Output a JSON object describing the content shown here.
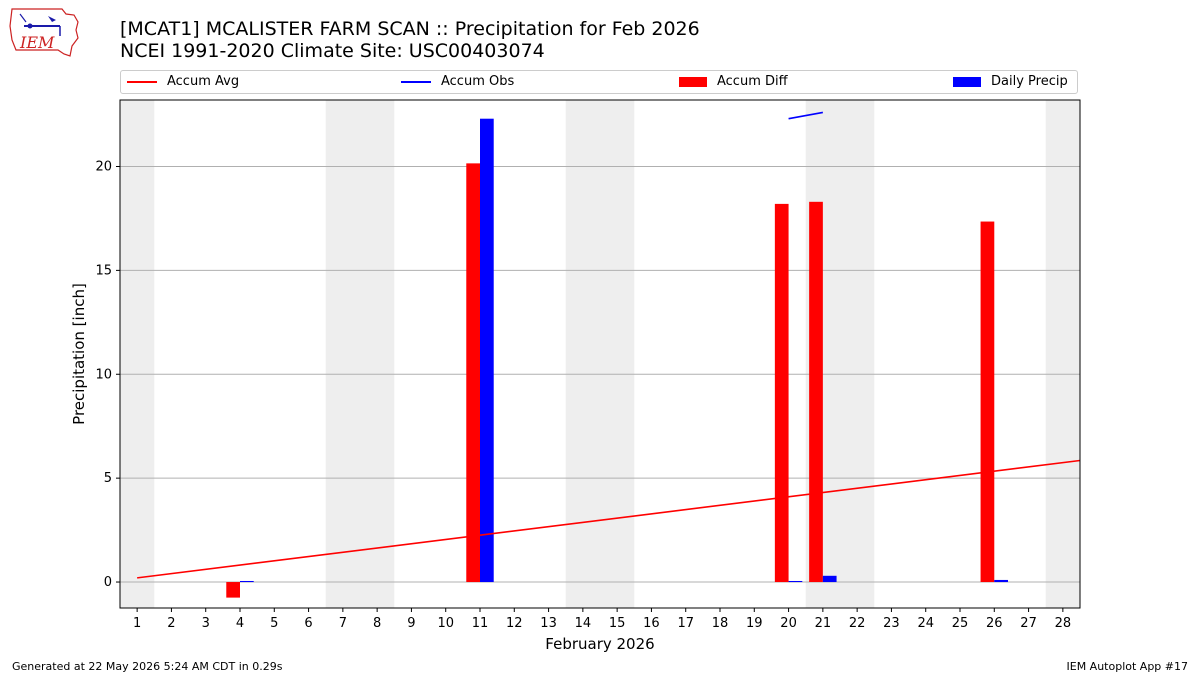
{
  "header": {
    "title_line1": "[MCAT1] MCALISTER FARM SCAN :: Precipitation for Feb 2026",
    "title_line2": "NCEI 1991-2020 Climate Site: USC00403074",
    "logo_text": "IEM"
  },
  "legend": {
    "placement": "top",
    "items": [
      {
        "label": "Accum Avg",
        "kind": "line",
        "color": "#ff0000"
      },
      {
        "label": "Accum Obs",
        "kind": "line",
        "color": "#0000ff"
      },
      {
        "label": "Accum Diff",
        "kind": "bar",
        "color": "#ff0000"
      },
      {
        "label": "Daily Precip",
        "kind": "bar",
        "color": "#0000ff"
      }
    ]
  },
  "footer": {
    "left": "Generated at 22 May 2026 5:24 AM CDT in 0.29s",
    "right": "IEM Autoplot App #17"
  },
  "chart_data": {
    "type": "bar",
    "title": "[MCAT1] MCALISTER FARM SCAN :: Precipitation for Feb 2026",
    "subtitle": "NCEI 1991-2020 Climate Site: USC00403074",
    "xlabel": "February 2026",
    "ylabel": "Precipitation [inch]",
    "xlim": [
      0.5,
      28.5
    ],
    "ylim": [
      -1.25,
      23.2
    ],
    "yticks": [
      0,
      5,
      10,
      15,
      20
    ],
    "categories": [
      "1",
      "2",
      "3",
      "4",
      "5",
      "6",
      "7",
      "8",
      "9",
      "10",
      "11",
      "12",
      "13",
      "14",
      "15",
      "16",
      "17",
      "18",
      "19",
      "20",
      "21",
      "22",
      "23",
      "24",
      "25",
      "26",
      "27",
      "28"
    ],
    "weekend_shading": [
      [
        0.5,
        1.5
      ],
      [
        6.5,
        8.5
      ],
      [
        13.5,
        15.5
      ],
      [
        20.5,
        22.5
      ],
      [
        27.5,
        28.5
      ]
    ],
    "grid": "horizontal",
    "series": [
      {
        "name": "Accum Avg",
        "type": "line",
        "color": "#ff0000",
        "x": [
          1,
          28.5
        ],
        "y": [
          0.2,
          5.85
        ]
      },
      {
        "name": "Accum Obs",
        "type": "line",
        "color": "#0000ff",
        "x": [
          20,
          21
        ],
        "y": [
          22.3,
          22.6
        ]
      },
      {
        "name": "Accum Diff",
        "type": "bar",
        "color": "#ff0000",
        "values": [
          0,
          0,
          0,
          -0.75,
          0,
          0,
          0,
          0,
          0,
          0,
          20.15,
          0,
          0,
          0,
          0,
          0,
          0,
          0,
          0,
          18.2,
          18.3,
          0,
          0,
          0,
          0,
          17.35,
          0,
          0
        ]
      },
      {
        "name": "Daily Precip",
        "type": "bar",
        "color": "#0000ff",
        "values": [
          0,
          0,
          0,
          0.05,
          0,
          0,
          0,
          0,
          0,
          0,
          22.3,
          0,
          0,
          0,
          0,
          0,
          0,
          0,
          0,
          0.05,
          0.3,
          0,
          0,
          0,
          0,
          0.1,
          0,
          0
        ]
      }
    ]
  }
}
